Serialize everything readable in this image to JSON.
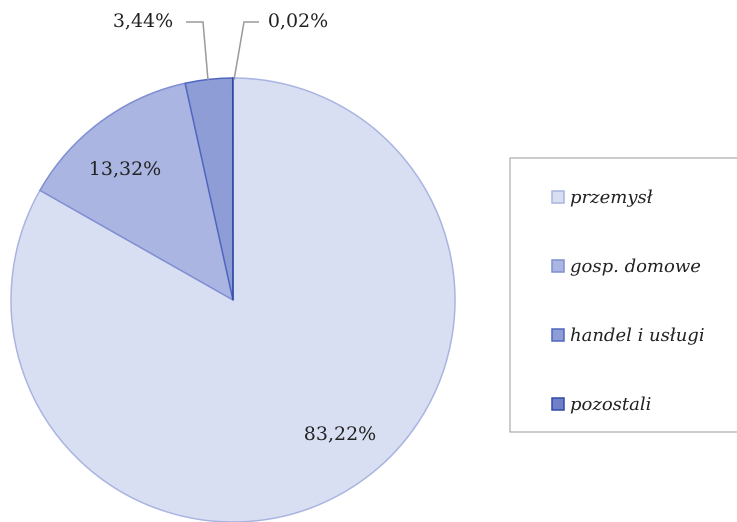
{
  "chart_data": {
    "type": "pie",
    "categories": [
      "przemysł",
      "gosp. domowe",
      "handel i usługi",
      "pozostali"
    ],
    "values": [
      83.22,
      13.32,
      3.44,
      0.02
    ],
    "value_labels": [
      "83,22%",
      "13,32%",
      "3,44%",
      "0,02%"
    ],
    "colors": [
      "#d9dff2",
      "#aab5e1",
      "#8f9dd7",
      "#6f80c8"
    ],
    "legend": "right"
  }
}
